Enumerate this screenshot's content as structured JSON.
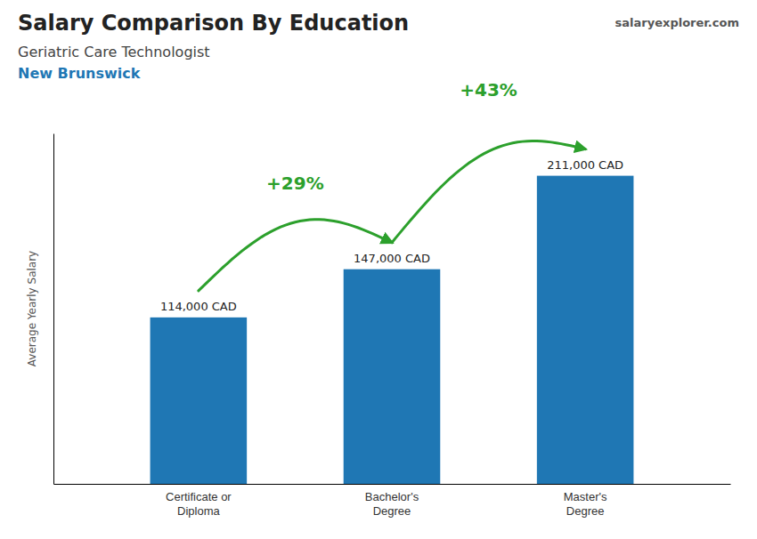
{
  "chart_data": {
    "type": "bar",
    "title": "Salary Comparison By Education",
    "subtitle": [
      "Geriatric Care Technologist",
      "New Brunswick"
    ],
    "source": "salaryexplorer.com",
    "ylabel": "Average Yearly Salary",
    "categories": [
      "Certificate or\nDiploma",
      "Bachelor's\nDegree",
      "Master's\nDegree"
    ],
    "values": [
      114000,
      147000,
      211000
    ],
    "value_labels": [
      "114,000 CAD",
      "147,000 CAD",
      "211,000 CAD"
    ],
    "data_labels": true,
    "annotations": [
      "+29%",
      "+43%"
    ],
    "ylim": [
      0,
      240000
    ],
    "tick_labels": "x",
    "grid": false
  }
}
